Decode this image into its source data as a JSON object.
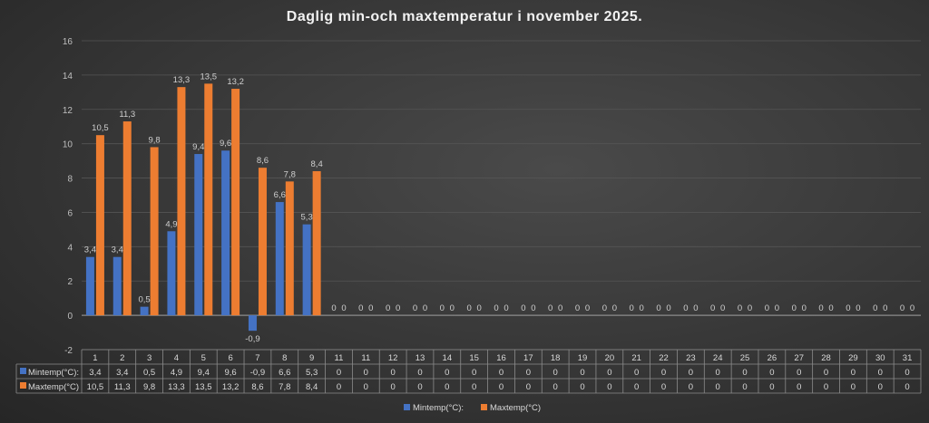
{
  "chart_data": {
    "type": "bar",
    "title": "Daglig min-och maxtemperatur i november 2025.",
    "categories": [
      "1",
      "2",
      "3",
      "4",
      "5",
      "6",
      "7",
      "8",
      "9",
      "11",
      "11",
      "12",
      "13",
      "14",
      "15",
      "16",
      "17",
      "18",
      "19",
      "20",
      "21",
      "22",
      "23",
      "24",
      "25",
      "26",
      "27",
      "28",
      "29",
      "30",
      "31"
    ],
    "series": [
      {
        "name": "Mintemp(°C):",
        "color": "#4472c4",
        "values": [
          "3,4",
          "3,4",
          "0,5",
          "4,9",
          "9,4",
          "9,6",
          "-0,9",
          "6,6",
          "5,3",
          "0",
          "0",
          "0",
          "0",
          "0",
          "0",
          "0",
          "0",
          "0",
          "0",
          "0",
          "0",
          "0",
          "0",
          "0",
          "0",
          "0",
          "0",
          "0",
          "0",
          "0",
          "0"
        ]
      },
      {
        "name": "Maxtemp(°C)",
        "color": "#ed7d31",
        "values": [
          "10,5",
          "11,3",
          "9,8",
          "13,3",
          "13,5",
          "13,2",
          "8,6",
          "7,8",
          "8,4",
          "0",
          "0",
          "0",
          "0",
          "0",
          "0",
          "0",
          "0",
          "0",
          "0",
          "0",
          "0",
          "0",
          "0",
          "0",
          "0",
          "0",
          "0",
          "0",
          "0",
          "0",
          "0"
        ]
      }
    ],
    "ylim": [
      -2,
      16
    ],
    "yticks": [
      "-2",
      "0",
      "2",
      "4",
      "6",
      "8",
      "10",
      "12",
      "14",
      "16"
    ],
    "grid": true,
    "data_table": true,
    "legend": "bottom"
  }
}
